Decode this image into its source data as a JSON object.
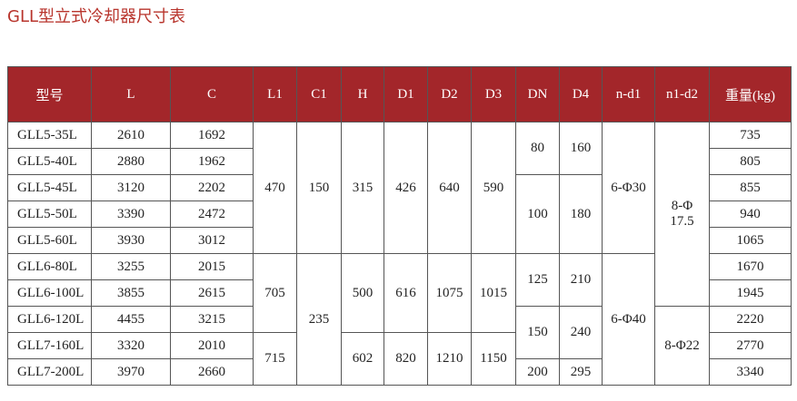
{
  "title": "GLL型立式冷却器尺寸表",
  "table": {
    "header": [
      "型号",
      "L",
      "C",
      "L1",
      "C1",
      "H",
      "D1",
      "D2",
      "D3",
      "DN",
      "D4",
      "n-d1",
      "n1-d2",
      "重量(kg)"
    ],
    "rows": [
      [
        "GLL5-35L",
        "2610",
        "1692",
        "470",
        "150",
        "315",
        "426",
        "640",
        "590",
        "80",
        "160",
        "6-Φ30",
        [
          "8-Φ",
          "17.5"
        ],
        "735"
      ],
      [
        "GLL5-40L",
        "2880",
        "1962",
        "805"
      ],
      [
        "GLL5-45L",
        "3120",
        "2202",
        "100",
        "180",
        "855"
      ],
      [
        "GLL5-50L",
        "3390",
        "2472",
        "940"
      ],
      [
        "GLL5-60L",
        "3930",
        "3012",
        "1065"
      ],
      [
        "GLL6-80L",
        "3255",
        "2015",
        "705",
        "235",
        "500",
        "616",
        "1075",
        "1015",
        "125",
        "210",
        "6-Φ40",
        "1670"
      ],
      [
        "GLL6-100L",
        "3855",
        "2615",
        "1945"
      ],
      [
        "GLL6-120L",
        "4455",
        "3215",
        "150",
        "240",
        "8-Φ22",
        "2220"
      ],
      [
        "GLL7-160L",
        "3320",
        "2010",
        "715",
        "602",
        "820",
        "1210",
        "1150",
        "2770"
      ],
      [
        "GLL7-200L",
        "3970",
        "2660",
        "200",
        "295",
        "3340"
      ]
    ]
  }
}
